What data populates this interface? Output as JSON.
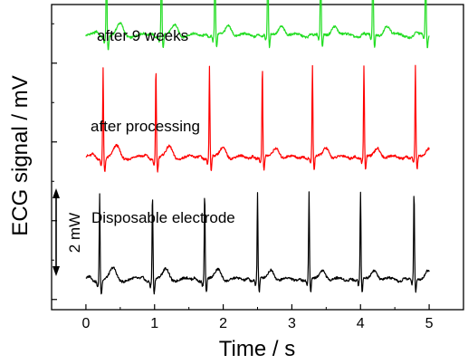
{
  "chart_data": {
    "type": "line",
    "title": "",
    "xlabel": "Time / s",
    "ylabel": "ECG signal / mV",
    "xlim": [
      -0.5,
      5.5
    ],
    "xticks": [
      0,
      1,
      2,
      3,
      4,
      5
    ],
    "x_tick_labels": [
      "0",
      "1",
      "2",
      "3",
      "4",
      "5"
    ],
    "grid": false,
    "legend": "none",
    "scale_bar": {
      "label": "2 mW",
      "span_mV": 2
    },
    "annotations": [
      "after 9 weeks",
      "after processing",
      "Disposable electrode"
    ],
    "series": [
      {
        "label_ref": 0,
        "color": "#22dd22",
        "baseline_mV": 6.2,
        "r_peaks_s": [
          0.3,
          1.1,
          1.88,
          2.65,
          3.42,
          4.18,
          4.95
        ],
        "r_amplitude_mV": 2.3
      },
      {
        "label_ref": 1,
        "color": "#ff0000",
        "baseline_mV": 3.1,
        "r_peaks_s": [
          0.25,
          1.02,
          1.8,
          2.57,
          3.3,
          4.05,
          4.8
        ],
        "r_amplitude_mV": 2.3
      },
      {
        "label_ref": 2,
        "color": "#000000",
        "baseline_mV": 0.0,
        "r_peaks_s": [
          0.2,
          0.97,
          1.73,
          2.5,
          3.25,
          4.0,
          4.78
        ],
        "r_amplitude_mV": 2.2
      }
    ]
  }
}
